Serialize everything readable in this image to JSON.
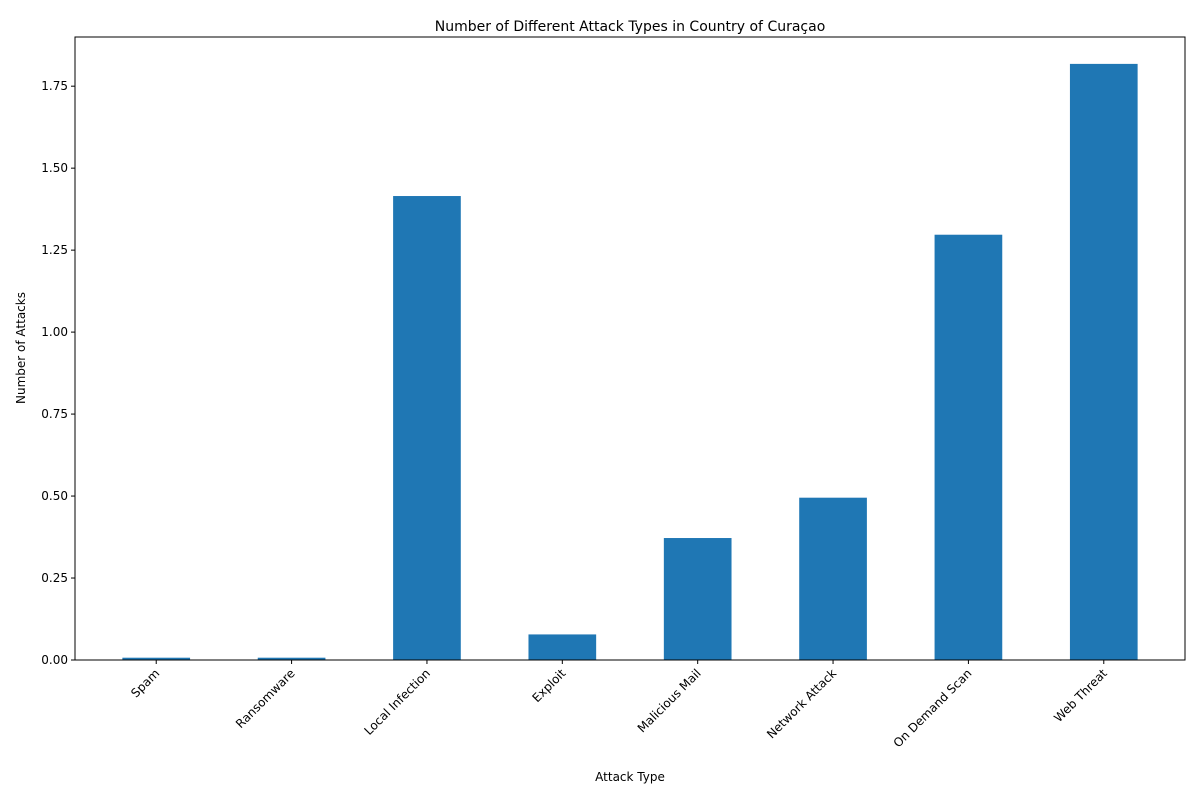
{
  "chart_data": {
    "type": "bar",
    "title": "Number of Different Attack Types in Country of Curaçao",
    "xlabel": "Attack Type",
    "ylabel": "Number of Attacks",
    "categories": [
      "Spam",
      "Ransomware",
      "Local Infection",
      "Exploit",
      "Malicious Mail",
      "Network Attack",
      "On Demand Scan",
      "Web Threat"
    ],
    "values": [
      0.007,
      0.007,
      1.415,
      0.078,
      0.372,
      0.495,
      1.297,
      1.818
    ],
    "ylim": [
      0,
      1.9
    ],
    "yticks": [
      "0.00",
      "0.25",
      "0.50",
      "0.75",
      "1.00",
      "1.25",
      "1.50",
      "1.75"
    ],
    "grid": false,
    "legend": "none",
    "bar_color": "#1f77b4"
  }
}
